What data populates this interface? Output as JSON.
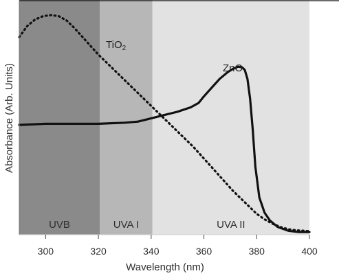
{
  "chart_data": {
    "type": "line",
    "title": "",
    "xlabel": "Wavelength (nm)",
    "ylabel": "Absorbance (Arb. Units)",
    "xlim": [
      290,
      400
    ],
    "ylim": [
      0,
      1
    ],
    "x_ticks": [
      300,
      320,
      340,
      360,
      380,
      400
    ],
    "grid": false,
    "legend": "none",
    "bands": [
      {
        "name": "UVB",
        "start": 290,
        "end": 320.5,
        "color": "#8a8a8a"
      },
      {
        "name": "UVA I",
        "start": 320.5,
        "end": 340.5,
        "color": "#b7b7b7"
      },
      {
        "name": "UVA II",
        "start": 340.5,
        "end": 400,
        "color": "#e2e2e2"
      }
    ],
    "series": [
      {
        "name": "TiO2",
        "label_text": "TiO",
        "label_subscript": "2",
        "style": "dotted",
        "color": "#111111",
        "x": [
          290,
          293,
          296,
          299,
          302,
          305,
          308,
          311,
          314,
          317,
          320,
          323,
          326,
          329,
          332,
          335,
          338,
          341,
          344,
          347,
          350,
          353,
          356,
          359,
          362,
          365,
          368,
          371,
          374,
          377,
          380,
          383,
          386,
          389,
          392,
          395,
          398,
          400
        ],
        "y": [
          0.9,
          0.95,
          0.98,
          0.995,
          1.0,
          0.995,
          0.975,
          0.94,
          0.9,
          0.86,
          0.82,
          0.785,
          0.75,
          0.715,
          0.68,
          0.645,
          0.61,
          0.575,
          0.54,
          0.505,
          0.47,
          0.435,
          0.4,
          0.36,
          0.32,
          0.28,
          0.24,
          0.2,
          0.165,
          0.13,
          0.095,
          0.07,
          0.05,
          0.035,
          0.025,
          0.02,
          0.018,
          0.016
        ]
      },
      {
        "name": "ZnO",
        "label_text": "ZnO",
        "style": "solid",
        "color": "#111111",
        "x": [
          290,
          300,
          310,
          320,
          330,
          335,
          340,
          345,
          350,
          355,
          358,
          360,
          363,
          366,
          369,
          371,
          373,
          374.5,
          375.5,
          376.5,
          377.5,
          378.5,
          379.5,
          381,
          383,
          385,
          388,
          392,
          396,
          400
        ],
        "y": [
          0.5,
          0.505,
          0.505,
          0.505,
          0.51,
          0.515,
          0.53,
          0.545,
          0.56,
          0.58,
          0.6,
          0.63,
          0.67,
          0.71,
          0.74,
          0.755,
          0.765,
          0.762,
          0.75,
          0.71,
          0.62,
          0.48,
          0.31,
          0.17,
          0.1,
          0.065,
          0.035,
          0.018,
          0.012,
          0.012
        ]
      }
    ]
  }
}
